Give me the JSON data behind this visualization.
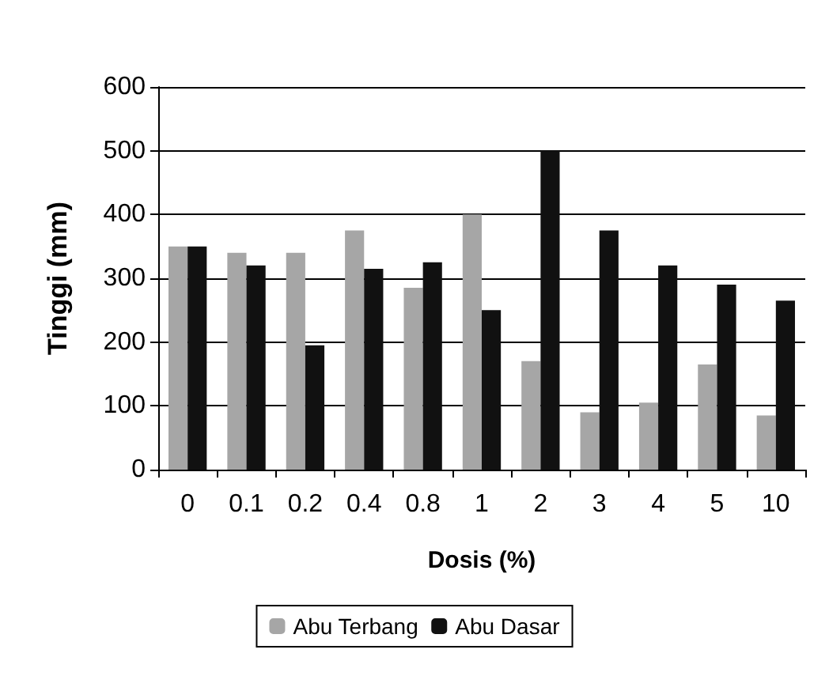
{
  "chart_data": {
    "type": "bar",
    "xlabel": "Dosis (%)",
    "ylabel": "Tinggi (mm)",
    "categories": [
      "0",
      "0.1",
      "0.2",
      "0.4",
      "0.8",
      "1",
      "2",
      "3",
      "4",
      "5",
      "10"
    ],
    "series": [
      {
        "name": "Abu Terbang",
        "color": "#a6a6a6",
        "values": [
          350,
          340,
          340,
          375,
          285,
          400,
          170,
          90,
          105,
          165,
          85
        ]
      },
      {
        "name": "Abu Dasar",
        "color": "#111111",
        "values": [
          350,
          320,
          195,
          315,
          325,
          250,
          500,
          375,
          320,
          290,
          265
        ]
      }
    ],
    "ylim": [
      0,
      600
    ],
    "yticks": [
      0,
      100,
      200,
      300,
      400,
      500,
      600
    ],
    "grid": "y",
    "legend": "bottom"
  }
}
